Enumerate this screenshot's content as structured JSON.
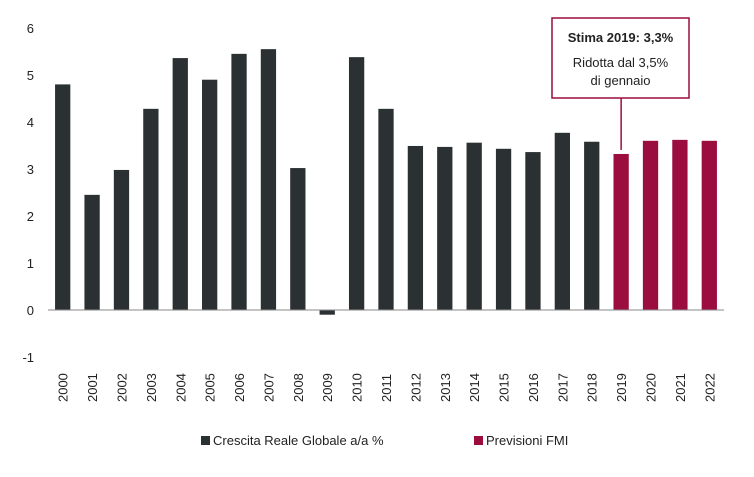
{
  "chart_data": {
    "type": "bar",
    "categories": [
      "2000",
      "2001",
      "2002",
      "2003",
      "2004",
      "2005",
      "2006",
      "2007",
      "2008",
      "2009",
      "2010",
      "2011",
      "2012",
      "2013",
      "2014",
      "2015",
      "2016",
      "2017",
      "2018",
      "2019",
      "2020",
      "2021",
      "2022"
    ],
    "series": [
      {
        "name": "Crescita Reale Globale a/a %",
        "color": "#2b3133",
        "values": [
          4.8,
          2.45,
          2.98,
          4.28,
          5.36,
          4.9,
          5.45,
          5.55,
          3.02,
          -0.1,
          5.38,
          4.28,
          3.49,
          3.47,
          3.56,
          3.43,
          3.36,
          3.77,
          3.58,
          null,
          null,
          null,
          null
        ]
      },
      {
        "name": "Previsioni FMI",
        "color": "#9b0d3f",
        "values": [
          null,
          null,
          null,
          null,
          null,
          null,
          null,
          null,
          null,
          null,
          null,
          null,
          null,
          null,
          null,
          null,
          null,
          null,
          null,
          3.32,
          3.6,
          3.62,
          3.6
        ]
      }
    ],
    "ylim": [
      -1,
      6
    ],
    "yticks": [
      "-1",
      "0",
      "1",
      "2",
      "3",
      "4",
      "5",
      "6"
    ],
    "legend_position": "bottom",
    "annotation": {
      "title": "Stima 2019: 3,3%",
      "line1": "Ridotta dal 3,5%",
      "line2": "di gennaio",
      "border_color": "#9b0d3f",
      "target_category": "2019"
    }
  }
}
